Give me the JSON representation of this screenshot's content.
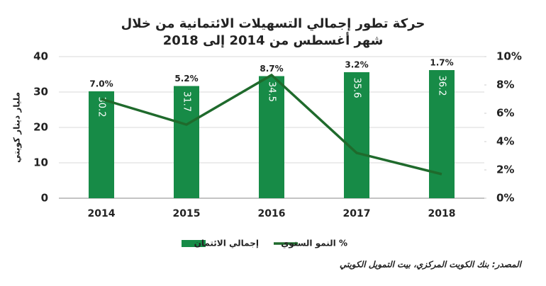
{
  "chart_data": {
    "type": "combo",
    "title": "حركة تطور إجمالي التسهيلات الائتمانية من خلال",
    "subtitle": "شهر أغسطس من 2014 إلى 2018",
    "ylabel": "مليار دينار كويتي",
    "categories": [
      "2014",
      "2015",
      "2016",
      "2017",
      "2018"
    ],
    "series": [
      {
        "name": "إجمالي الائتمان",
        "type": "bar",
        "color": "#178b47",
        "values": [
          30.2,
          31.7,
          34.5,
          35.6,
          36.2
        ]
      },
      {
        "name": "% النمو السنوي",
        "type": "line",
        "axis": "y2",
        "color": "#1f6a2c",
        "values": [
          7.0,
          5.2,
          8.7,
          3.2,
          1.7
        ],
        "value_labels": [
          "7.0%",
          "5.2%",
          "8.7%",
          "3.2%",
          "1.7%"
        ]
      }
    ],
    "ylim": [
      0,
      40
    ],
    "yticks": [
      0,
      10,
      20,
      30,
      40
    ],
    "y2lim": [
      0,
      10
    ],
    "y2ticks": [
      {
        "value": 0,
        "label": "0%"
      },
      {
        "value": 2,
        "label": "2%"
      },
      {
        "value": 4,
        "label": "4%"
      },
      {
        "value": 6,
        "label": "6%"
      },
      {
        "value": 8,
        "label": "8%"
      },
      {
        "value": 10,
        "label": "10%"
      }
    ],
    "grid": true,
    "legend": "bottom",
    "source": "المصدر: بنك الكويت المركزي، بيت التمويل الكويتي"
  }
}
